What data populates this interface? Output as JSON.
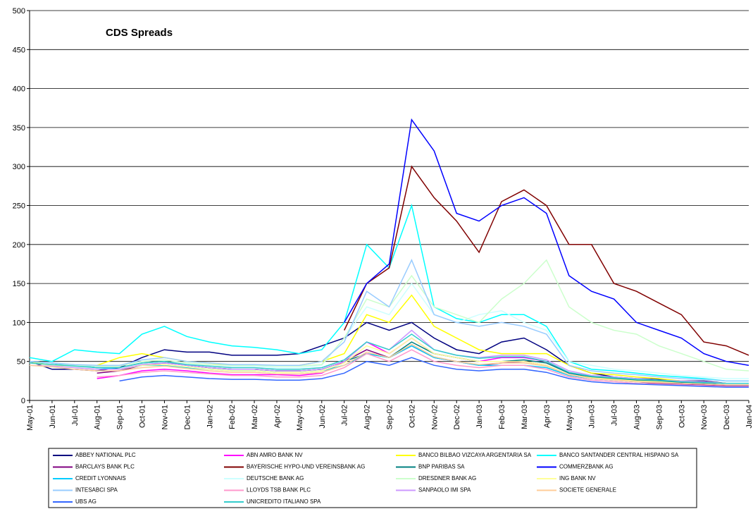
{
  "chart_data": {
    "type": "line",
    "title": "CDS Spreads",
    "categories": [
      "May-01",
      "Jun-01",
      "Jul-01",
      "Aug-01",
      "Sep-01",
      "Oct-01",
      "Nov-01",
      "Dec-01",
      "Jan-02",
      "Feb-02",
      "Mar-02",
      "Apr-02",
      "May-02",
      "Jun-02",
      "Jul-02",
      "Aug-02",
      "Sep-02",
      "Oct-02",
      "Nov-02",
      "Dec-02",
      "Jan-03",
      "Feb-03",
      "Mar-03",
      "Apr-03",
      "May-03",
      "Jun-03",
      "Jul-03",
      "Aug-03",
      "Sep-03",
      "Oct-03",
      "Nov-03",
      "Dec-03",
      "Jan-04"
    ],
    "ylim": [
      0,
      500
    ],
    "yticks": [
      0,
      50,
      100,
      150,
      200,
      250,
      300,
      350,
      400,
      450,
      500
    ],
    "grid": true,
    "series": [
      {
        "name": "ABBEY NATIONAL PLC",
        "color": "#000080",
        "values": [
          50,
          40,
          40,
          38,
          42,
          55,
          65,
          62,
          62,
          58,
          58,
          58,
          60,
          70,
          80,
          100,
          90,
          100,
          80,
          65,
          60,
          75,
          80,
          65,
          45,
          35,
          30,
          28,
          27,
          25,
          25,
          22,
          22
        ]
      },
      {
        "name": "ABN AMRO BANK NV",
        "color": "#ff00ff",
        "values": [
          null,
          null,
          null,
          28,
          32,
          38,
          40,
          38,
          35,
          33,
          33,
          33,
          32,
          35,
          50,
          75,
          60,
          80,
          60,
          55,
          50,
          55,
          55,
          50,
          35,
          30,
          28,
          25,
          24,
          22,
          21,
          20,
          20
        ]
      },
      {
        "name": "BANCO BILBAO VIZCAYA ARGENTARIA SA",
        "color": "#ffff00",
        "values": [
          50,
          45,
          45,
          45,
          55,
          60,
          55,
          50,
          48,
          45,
          45,
          45,
          45,
          50,
          60,
          110,
          100,
          135,
          95,
          80,
          65,
          60,
          60,
          60,
          45,
          35,
          33,
          30,
          28,
          25,
          24,
          22,
          22
        ]
      },
      {
        "name": "BANCO SANTANDER CENTRAL HISPANO SA",
        "color": "#00ffff",
        "values": [
          55,
          50,
          65,
          62,
          60,
          85,
          95,
          82,
          75,
          70,
          68,
          65,
          60,
          65,
          100,
          200,
          170,
          250,
          120,
          105,
          100,
          110,
          110,
          95,
          50,
          40,
          38,
          35,
          32,
          30,
          28,
          25,
          25
        ]
      },
      {
        "name": "BARCLAYS BANK PLC",
        "color": "#800080",
        "values": [
          null,
          null,
          null,
          35,
          38,
          45,
          48,
          45,
          42,
          40,
          40,
          38,
          38,
          40,
          50,
          65,
          55,
          70,
          55,
          50,
          45,
          48,
          50,
          45,
          32,
          28,
          26,
          24,
          22,
          21,
          20,
          19,
          19
        ]
      },
      {
        "name": "BAYERISCHE HYPO-UND VEREINSBANK AG",
        "color": "#800000",
        "values": [
          null,
          null,
          null,
          null,
          null,
          null,
          null,
          null,
          null,
          null,
          null,
          null,
          null,
          null,
          90,
          150,
          170,
          300,
          260,
          230,
          190,
          255,
          270,
          250,
          200,
          200,
          150,
          140,
          125,
          110,
          75,
          70,
          58
        ]
      },
      {
        "name": "BNP PARIBAS SA",
        "color": "#008080",
        "values": [
          50,
          48,
          45,
          42,
          42,
          48,
          50,
          45,
          42,
          40,
          40,
          38,
          38,
          40,
          50,
          60,
          55,
          75,
          60,
          55,
          50,
          50,
          52,
          48,
          35,
          30,
          28,
          26,
          25,
          23,
          22,
          20,
          20
        ]
      },
      {
        "name": "COMMERZBANK AG",
        "color": "#0000ff",
        "values": [
          null,
          null,
          null,
          null,
          null,
          null,
          null,
          null,
          null,
          null,
          null,
          null,
          null,
          null,
          100,
          150,
          175,
          360,
          320,
          240,
          230,
          250,
          260,
          240,
          160,
          140,
          130,
          100,
          90,
          80,
          60,
          50,
          45
        ]
      },
      {
        "name": "CREDIT LYONNAIS",
        "color": "#00ccff",
        "values": [
          50,
          48,
          45,
          42,
          40,
          45,
          45,
          42,
          40,
          38,
          38,
          36,
          36,
          38,
          45,
          60,
          55,
          70,
          55,
          50,
          45,
          45,
          45,
          42,
          32,
          28,
          26,
          24,
          23,
          22,
          21,
          20,
          20
        ]
      },
      {
        "name": "DEUTSCHE BANK AG",
        "color": "#ccffff",
        "values": [
          50,
          48,
          46,
          45,
          45,
          50,
          52,
          48,
          46,
          44,
          44,
          42,
          42,
          45,
          80,
          120,
          110,
          150,
          110,
          100,
          110,
          115,
          100,
          90,
          50,
          45,
          40,
          38,
          35,
          32,
          30,
          28,
          28
        ]
      },
      {
        "name": "DRESDNER BANK AG",
        "color": "#ccffcc",
        "values": [
          48,
          46,
          45,
          44,
          44,
          50,
          52,
          48,
          46,
          45,
          45,
          44,
          44,
          46,
          80,
          130,
          120,
          160,
          120,
          110,
          100,
          130,
          150,
          180,
          120,
          100,
          90,
          85,
          70,
          60,
          50,
          40,
          38
        ]
      },
      {
        "name": "ING BANK NV",
        "color": "#ffff99",
        "values": [
          48,
          45,
          42,
          40,
          40,
          45,
          46,
          43,
          40,
          38,
          38,
          36,
          36,
          38,
          48,
          70,
          60,
          80,
          60,
          55,
          50,
          50,
          50,
          45,
          33,
          29,
          27,
          25,
          24,
          22,
          21,
          20,
          20
        ]
      },
      {
        "name": "INTESABCI SPA",
        "color": "#99ccff",
        "values": [
          50,
          48,
          46,
          45,
          45,
          52,
          55,
          50,
          48,
          46,
          46,
          45,
          45,
          50,
          75,
          140,
          120,
          180,
          110,
          100,
          95,
          100,
          95,
          85,
          45,
          38,
          35,
          33,
          30,
          28,
          27,
          25,
          25
        ]
      },
      {
        "name": "LLOYDS TSB BANK PLC",
        "color": "#ff99cc",
        "values": [
          null,
          null,
          null,
          30,
          32,
          36,
          38,
          36,
          34,
          32,
          32,
          30,
          30,
          32,
          42,
          60,
          50,
          65,
          50,
          45,
          42,
          45,
          45,
          40,
          30,
          26,
          24,
          22,
          21,
          20,
          19,
          18,
          18
        ]
      },
      {
        "name": "SANPAOLO IMI SPA",
        "color": "#cc99ff",
        "values": [
          45,
          44,
          42,
          40,
          40,
          46,
          48,
          45,
          42,
          40,
          40,
          38,
          38,
          40,
          50,
          75,
          65,
          90,
          65,
          58,
          55,
          58,
          58,
          52,
          38,
          32,
          30,
          28,
          26,
          25,
          24,
          22,
          22
        ]
      },
      {
        "name": "SOCIETE GENERALE",
        "color": "#ffcc99",
        "values": [
          45,
          43,
          40,
          38,
          38,
          42,
          44,
          41,
          38,
          36,
          36,
          34,
          34,
          36,
          45,
          62,
          55,
          72,
          56,
          50,
          46,
          48,
          48,
          44,
          33,
          28,
          26,
          24,
          23,
          22,
          21,
          20,
          20
        ]
      },
      {
        "name": "UBS AG",
        "color": "#3366ff",
        "values": [
          null,
          null,
          null,
          null,
          25,
          30,
          32,
          30,
          28,
          27,
          27,
          26,
          26,
          28,
          35,
          50,
          45,
          55,
          45,
          40,
          38,
          40,
          40,
          36,
          28,
          24,
          22,
          21,
          20,
          19,
          18,
          17,
          17
        ]
      },
      {
        "name": "UNICREDITO ITALIANO SPA",
        "color": "#33cccc",
        "values": [
          48,
          46,
          44,
          42,
          42,
          48,
          50,
          46,
          44,
          42,
          42,
          40,
          40,
          42,
          52,
          75,
          65,
          85,
          65,
          58,
          54,
          56,
          56,
          50,
          36,
          31,
          29,
          27,
          26,
          24,
          23,
          22,
          22
        ]
      }
    ]
  }
}
